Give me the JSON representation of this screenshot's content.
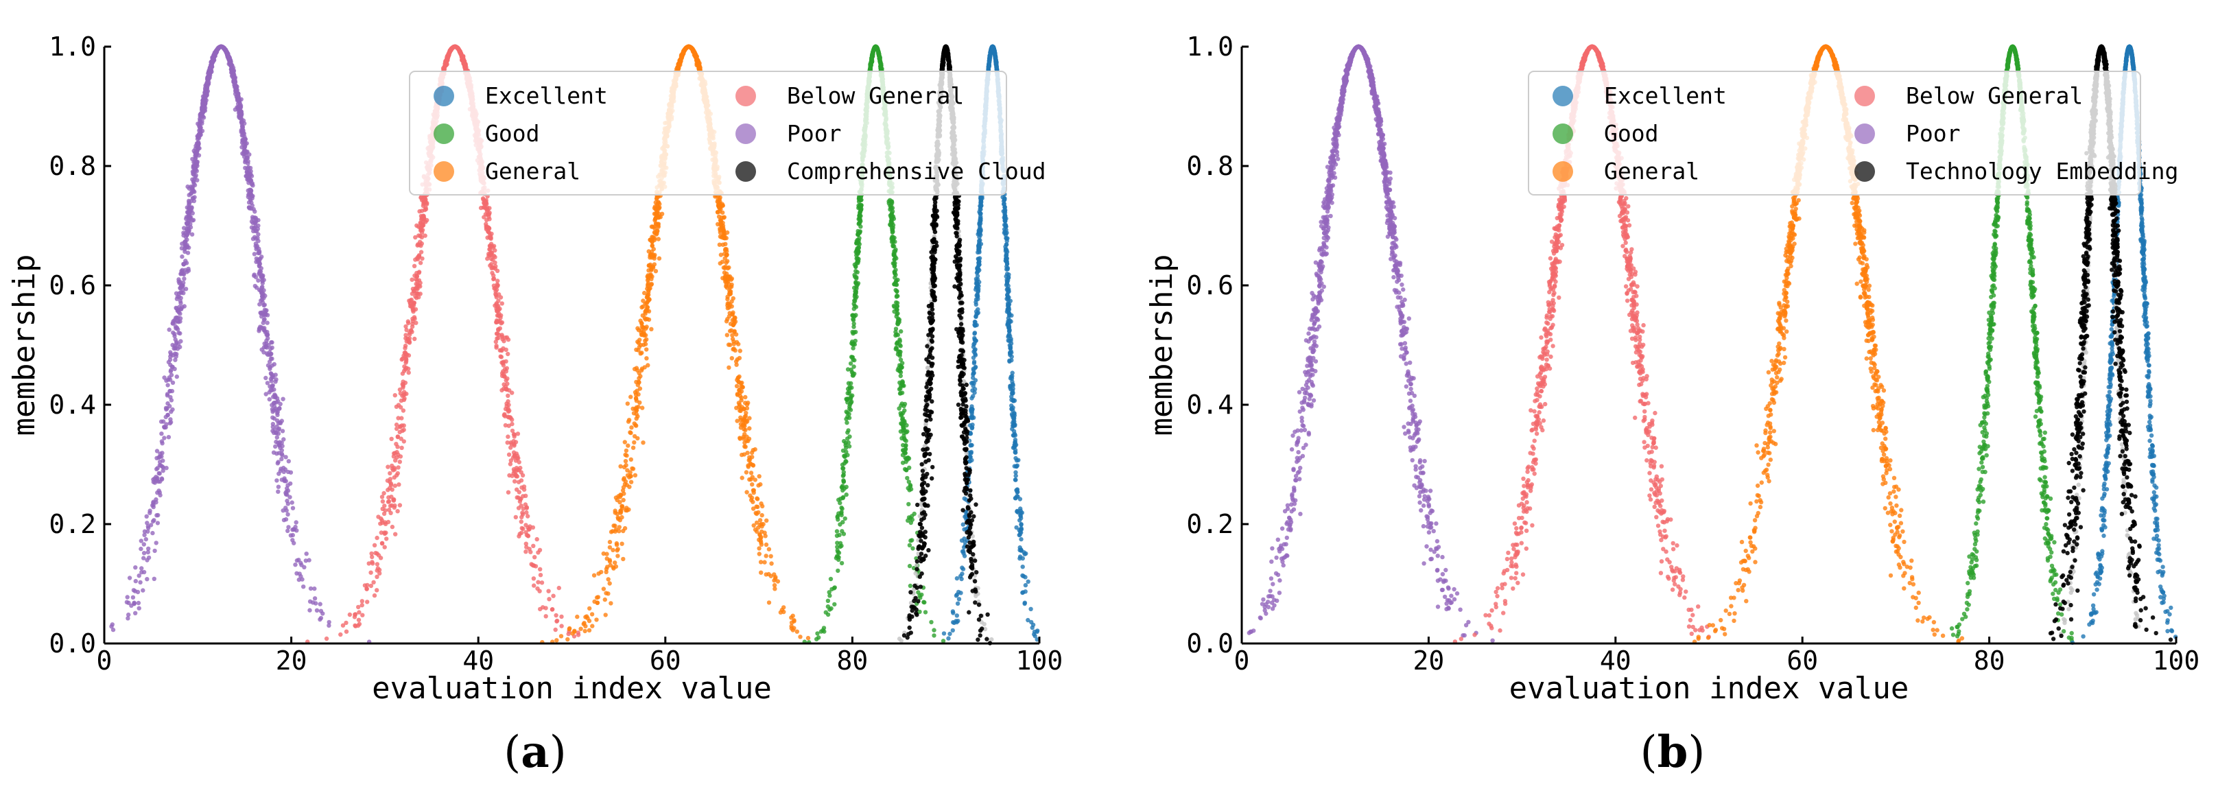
{
  "chart_data": [
    {
      "type": "scatter",
      "panel_label": "(a)",
      "xlabel": "evaluation index value",
      "ylabel": "membership",
      "xlim": [
        0,
        100
      ],
      "ylim": [
        0,
        1
      ],
      "xticks": [
        "0",
        "20",
        "40",
        "60",
        "80",
        "100"
      ],
      "yticks": [
        "0.0",
        "0.2",
        "0.4",
        "0.6",
        "0.8",
        "1.0"
      ],
      "legend_position": "top-right",
      "series": [
        {
          "name": "Excellent",
          "color": "#1f77b4",
          "Ex": 95,
          "En": 1.6,
          "He": 0.08,
          "drops": 1200
        },
        {
          "name": "Good",
          "color": "#2ca02c",
          "Ex": 82.5,
          "En": 2.1,
          "He": 0.12,
          "drops": 1200
        },
        {
          "name": "General",
          "color": "#ff7f0e",
          "Ex": 62.5,
          "En": 4.2,
          "He": 0.25,
          "drops": 1500
        },
        {
          "name": "Below General",
          "color": "#f26a6d",
          "Ex": 37.5,
          "En": 4.2,
          "He": 0.25,
          "drops": 1500
        },
        {
          "name": "Poor",
          "color": "#9467bd",
          "Ex": 12.5,
          "En": 4.2,
          "He": 0.25,
          "drops": 1500
        },
        {
          "name": "Comprehensive Cloud",
          "color": "#000000",
          "Ex": 90,
          "En": 1.4,
          "He": 0.15,
          "drops": 1300
        }
      ],
      "overlay_series": {
        "name": "",
        "color": "#c4c4c4",
        "Ex": 90,
        "En": 1.5,
        "He": 0.05,
        "drops": 600
      }
    },
    {
      "type": "scatter",
      "panel_label": "(b)",
      "xlabel": "evaluation index value",
      "ylabel": "membership",
      "xlim": [
        0,
        100
      ],
      "ylim": [
        0,
        1
      ],
      "xticks": [
        "0",
        "20",
        "40",
        "60",
        "80",
        "100"
      ],
      "yticks": [
        "0.0",
        "0.2",
        "0.4",
        "0.6",
        "0.8",
        "1.0"
      ],
      "legend_position": "top-right",
      "series": [
        {
          "name": "Excellent",
          "color": "#1f77b4",
          "Ex": 95,
          "En": 1.6,
          "He": 0.08,
          "drops": 1200
        },
        {
          "name": "Good",
          "color": "#2ca02c",
          "Ex": 82.5,
          "En": 2.1,
          "He": 0.12,
          "drops": 1200
        },
        {
          "name": "General",
          "color": "#ff7f0e",
          "Ex": 62.5,
          "En": 4.2,
          "He": 0.25,
          "drops": 1500
        },
        {
          "name": "Below General",
          "color": "#f26a6d",
          "Ex": 37.5,
          "En": 4.2,
          "He": 0.25,
          "drops": 1500
        },
        {
          "name": "Poor",
          "color": "#9467bd",
          "Ex": 12.5,
          "En": 4.2,
          "He": 0.25,
          "drops": 1500
        },
        {
          "name": "Technology Embedding",
          "color": "#000000",
          "Ex": 92,
          "En": 1.7,
          "He": 0.2,
          "drops": 1500
        }
      ],
      "overlay_series": {
        "name": "",
        "color": "#c4c4c4",
        "Ex": 92,
        "En": 1.5,
        "He": 0.05,
        "drops": 600
      }
    }
  ]
}
